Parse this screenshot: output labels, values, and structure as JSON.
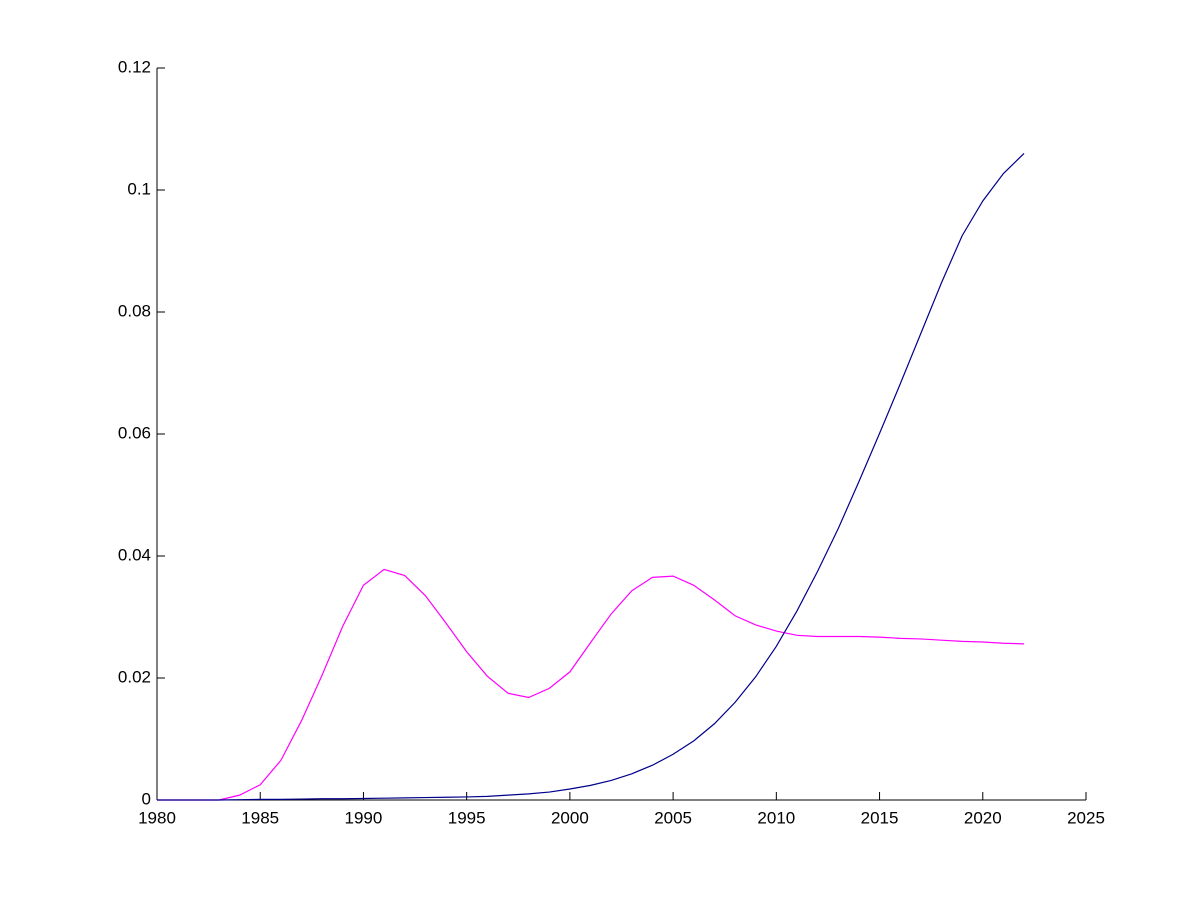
{
  "chart_data": {
    "type": "line",
    "x": [
      1980,
      1981,
      1982,
      1983,
      1984,
      1985,
      1986,
      1987,
      1988,
      1989,
      1990,
      1991,
      1992,
      1993,
      1994,
      1995,
      1996,
      1997,
      1998,
      1999,
      2000,
      2001,
      2002,
      2003,
      2004,
      2005,
      2006,
      2007,
      2008,
      2009,
      2010,
      2011,
      2012,
      2013,
      2014,
      2015,
      2016,
      2017,
      2018,
      2019,
      2020,
      2021,
      2022
    ],
    "series": [
      {
        "color": "#ff00ff",
        "values": [
          0,
          0,
          0,
          0,
          0.0008,
          0.0025,
          0.0065,
          0.013,
          0.0205,
          0.0285,
          0.0352,
          0.0378,
          0.0368,
          0.0335,
          0.029,
          0.0243,
          0.0203,
          0.0175,
          0.0168,
          0.0183,
          0.021,
          0.0258,
          0.0305,
          0.0343,
          0.0365,
          0.0367,
          0.0352,
          0.0328,
          0.0302,
          0.0287,
          0.0277,
          0.027,
          0.0268,
          0.0268,
          0.0268,
          0.0267,
          0.0265,
          0.0264,
          0.0262,
          0.026,
          0.0259,
          0.0257,
          0.0256
        ]
      },
      {
        "color": "#00008b",
        "values": [
          0,
          0,
          0,
          0,
          5e-05,
          0.0001,
          0.0001,
          0.00015,
          0.0002,
          0.0002,
          0.00025,
          0.0003,
          0.00035,
          0.0004,
          0.00045,
          0.0005,
          0.0006,
          0.0008,
          0.001,
          0.0013,
          0.0018,
          0.0024,
          0.0032,
          0.0043,
          0.0057,
          0.0075,
          0.0097,
          0.0125,
          0.016,
          0.0202,
          0.0252,
          0.031,
          0.0375,
          0.0445,
          0.0522,
          0.0601,
          0.0682,
          0.0765,
          0.0848,
          0.0925,
          0.0982,
          0.1027,
          0.106
        ]
      }
    ],
    "xlim": [
      1980,
      2025
    ],
    "xticks": [
      1980,
      1985,
      1990,
      1995,
      2000,
      2005,
      2010,
      2015,
      2020,
      2025
    ],
    "ylim": [
      0,
      0.12
    ],
    "yticks": [
      0,
      0.02,
      0.04,
      0.06,
      0.08,
      0.1,
      0.12
    ]
  }
}
